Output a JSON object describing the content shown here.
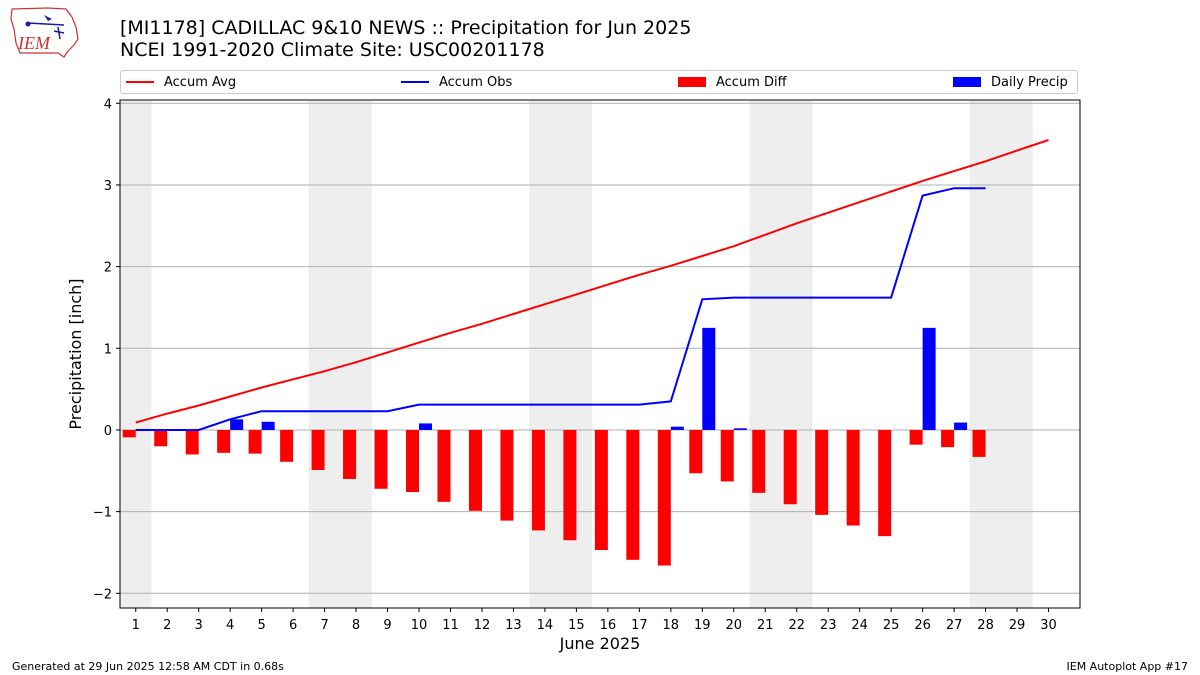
{
  "header": {
    "title_line1": "[MI1178] CADILLAC 9&10 NEWS :: Precipitation for Jun 2025",
    "title_line2": "NCEI 1991-2020 Climate Site: USC00201178",
    "logo_text": "IEM"
  },
  "legend": [
    {
      "label": "Accum Avg",
      "color": "#ff0000",
      "kind": "line"
    },
    {
      "label": "Accum Obs",
      "color": "#0000ff",
      "kind": "line"
    },
    {
      "label": "Accum Diff",
      "color": "#ff0000",
      "kind": "bar"
    },
    {
      "label": "Daily Precip",
      "color": "#0000ff",
      "kind": "bar"
    }
  ],
  "footer": {
    "generated": "Generated at 29 Jun 2025 12:58 AM CDT in 0.68s",
    "app": "IEM Autoplot App #17"
  },
  "chart_data": {
    "type": "bar",
    "xlabel": "June 2025",
    "ylabel": "Precipitation [inch]",
    "ylim": [
      -2.18,
      4.04
    ],
    "yticks": [
      -2,
      -1,
      0,
      1,
      2,
      3,
      4
    ],
    "ytick_labels": [
      "−2",
      "−1",
      "0",
      "1",
      "2",
      "3",
      "4"
    ],
    "categories": [
      "1",
      "2",
      "3",
      "4",
      "5",
      "6",
      "7",
      "8",
      "9",
      "10",
      "11",
      "12",
      "13",
      "14",
      "15",
      "16",
      "17",
      "18",
      "19",
      "20",
      "21",
      "22",
      "23",
      "24",
      "25",
      "26",
      "27",
      "28",
      "29",
      "30"
    ],
    "weekend_shading": [
      [
        1,
        1
      ],
      [
        7,
        8
      ],
      [
        14,
        15
      ],
      [
        21,
        22
      ],
      [
        28,
        29
      ]
    ],
    "grid": "horizontal",
    "legend_position": "top",
    "series": [
      {
        "name": "Accum Avg",
        "type": "line",
        "color": "#ff0000",
        "values": [
          0.09,
          0.2,
          0.3,
          0.41,
          0.52,
          0.62,
          0.72,
          0.83,
          0.95,
          1.07,
          1.19,
          1.3,
          1.42,
          1.54,
          1.66,
          1.78,
          1.9,
          2.01,
          2.13,
          2.25,
          2.39,
          2.53,
          2.66,
          2.79,
          2.92,
          3.05,
          3.17,
          3.29,
          3.42,
          3.55
        ]
      },
      {
        "name": "Accum Obs",
        "type": "line",
        "color": "#0000ff",
        "values": [
          0.0,
          0.0,
          0.0,
          0.13,
          0.23,
          0.23,
          0.23,
          0.23,
          0.23,
          0.31,
          0.31,
          0.31,
          0.31,
          0.31,
          0.31,
          0.31,
          0.31,
          0.35,
          1.6,
          1.62,
          1.62,
          1.62,
          1.62,
          1.62,
          1.62,
          2.87,
          2.96,
          2.96,
          null,
          null
        ]
      },
      {
        "name": "Accum Diff",
        "type": "bar",
        "color": "#ff0000",
        "values": [
          -0.09,
          -0.2,
          -0.3,
          -0.28,
          -0.29,
          -0.39,
          -0.49,
          -0.6,
          -0.72,
          -0.76,
          -0.88,
          -0.99,
          -1.11,
          -1.23,
          -1.35,
          -1.47,
          -1.59,
          -1.66,
          -0.53,
          -0.63,
          -0.77,
          -0.91,
          -1.04,
          -1.17,
          -1.3,
          -0.18,
          -0.21,
          -0.33,
          null,
          null
        ]
      },
      {
        "name": "Daily Precip",
        "type": "bar",
        "color": "#0000ff",
        "values": [
          0,
          0,
          0,
          0.13,
          0.1,
          0,
          0,
          0,
          0,
          0.08,
          0,
          0,
          0,
          0,
          0,
          0,
          0,
          0.04,
          1.25,
          0.02,
          0,
          0,
          0,
          0,
          0,
          1.25,
          0.09,
          0,
          null,
          null
        ]
      }
    ]
  }
}
